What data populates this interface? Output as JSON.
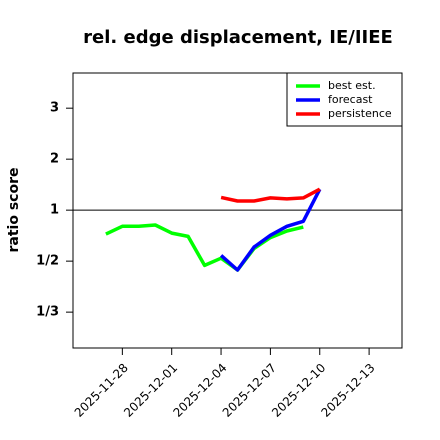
{
  "chart_data": {
    "type": "line",
    "title": "rel. edge displacement, IE/IIEE",
    "ylabel": "ratio score",
    "scale": "ratio",
    "xlim": [
      "2025-11-25",
      "2025-12-15"
    ],
    "xticks": [
      "2025-11-28",
      "2025-12-01",
      "2025-12-04",
      "2025-12-07",
      "2025-12-10",
      "2025-12-13"
    ],
    "highlight_xtick": "2025-12-04",
    "highlight_color": "#228b22",
    "ylim": [
      0.27,
      3.69
    ],
    "yticks": [
      3,
      2,
      1,
      {
        "value": 0.5,
        "label": "1/2"
      },
      {
        "value": 0.3333,
        "label": "1/3"
      }
    ],
    "hline": 1,
    "legend": "upper right",
    "series": [
      {
        "name": "best est.",
        "color": "#00ff00",
        "x": [
          "2025-11-27",
          "2025-11-28",
          "2025-11-29",
          "2025-11-30",
          "2025-12-01",
          "2025-12-02",
          "2025-12-03",
          "2025-12-04",
          "2025-12-05",
          "2025-12-06",
          "2025-12-07",
          "2025-12-08",
          "2025-12-09"
        ],
        "values": [
          0.68,
          0.76,
          0.76,
          0.775,
          0.69,
          0.66,
          0.48,
          0.515,
          0.46,
          0.57,
          0.65,
          0.71,
          0.75
        ]
      },
      {
        "name": "forecast",
        "color": "#0000ff",
        "x": [
          "2025-12-04",
          "2025-12-05",
          "2025-12-06",
          "2025-12-07",
          "2025-12-08",
          "2025-12-09",
          "2025-12-10"
        ],
        "values": [
          0.53,
          0.46,
          0.58,
          0.67,
          0.76,
          0.82,
          1.41
        ]
      },
      {
        "name": "persistence",
        "color": "#ff0000",
        "x": [
          "2025-12-04",
          "2025-12-05",
          "2025-12-06",
          "2025-12-07",
          "2025-12-08",
          "2025-12-09",
          "2025-12-10"
        ],
        "values": [
          1.25,
          1.18,
          1.18,
          1.24,
          1.22,
          1.24,
          1.41
        ]
      }
    ]
  }
}
